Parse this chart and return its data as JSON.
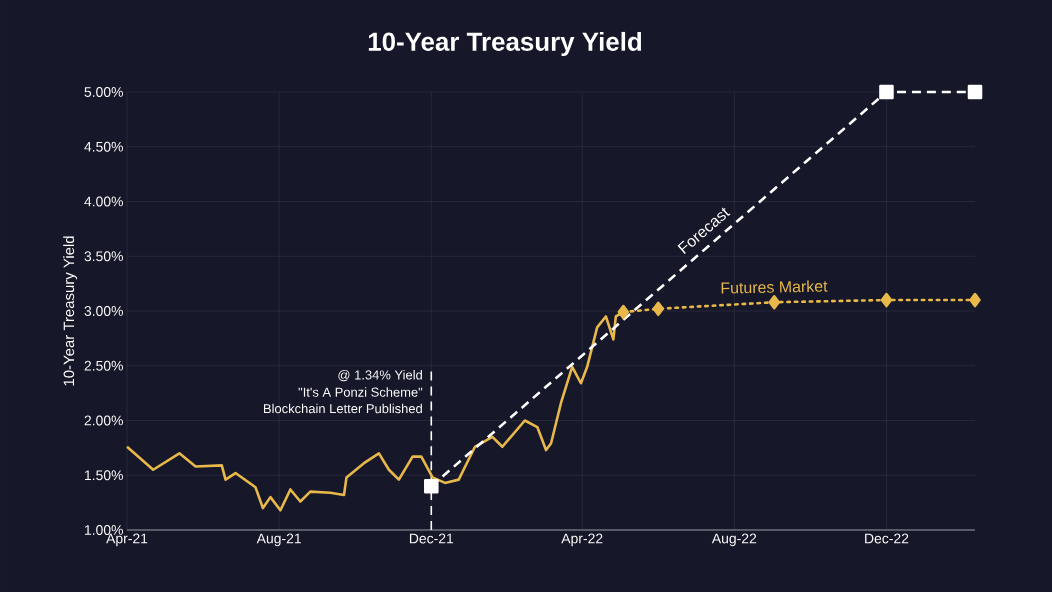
{
  "chart_data": {
    "type": "line",
    "title": "10-Year Treasury Yield",
    "ylabel": "10-Year Treasury Yield",
    "xlim": [
      "2021-04-01",
      "2023-02-10"
    ],
    "ylim": [
      1,
      5
    ],
    "xticks": [
      {
        "value": "2021-04-01",
        "label": "Apr-21"
      },
      {
        "value": "2021-08-01",
        "label": "Aug-21"
      },
      {
        "value": "2021-12-01",
        "label": "Dec-21"
      },
      {
        "value": "2022-04-01",
        "label": "Apr-22"
      },
      {
        "value": "2022-08-01",
        "label": "Aug-22"
      },
      {
        "value": "2022-12-01",
        "label": "Dec-22"
      }
    ],
    "yticks": [
      {
        "value": 1,
        "label": "1.00%"
      },
      {
        "value": 1.5,
        "label": "1.50%"
      },
      {
        "value": 2,
        "label": "2.00%"
      },
      {
        "value": 2.5,
        "label": "2.50%"
      },
      {
        "value": 3,
        "label": "3.00%"
      },
      {
        "value": 3.5,
        "label": "3.50%"
      },
      {
        "value": 4,
        "label": "4.00%"
      },
      {
        "value": 4.5,
        "label": "4.50%"
      },
      {
        "value": 5,
        "label": "5.00%"
      }
    ],
    "grid": true,
    "legend": false,
    "series": [
      {
        "color": "#e8b84a",
        "line_style": "solid",
        "marker": "none",
        "x": [
          "2021-04-01",
          "2021-04-22",
          "2021-05-13",
          "2021-05-26",
          "2021-06-16",
          "2021-06-19",
          "2021-06-27",
          "2021-07-13",
          "2021-07-19",
          "2021-07-25",
          "2021-08-02",
          "2021-08-10",
          "2021-08-18",
          "2021-08-26",
          "2021-09-11",
          "2021-09-22",
          "2021-09-24",
          "2021-10-08",
          "2021-10-20",
          "2021-10-28",
          "2021-11-05",
          "2021-11-16",
          "2021-11-23",
          "2021-12-02",
          "2021-12-12",
          "2021-12-23",
          "2022-01-05",
          "2022-01-19",
          "2022-01-27",
          "2022-02-14",
          "2022-02-24",
          "2022-03-03",
          "2022-03-07",
          "2022-03-15",
          "2022-03-24",
          "2022-03-31",
          "2022-04-05",
          "2022-04-13",
          "2022-04-20",
          "2022-04-26",
          "2022-04-28",
          "2022-05-04"
        ],
        "values": [
          1.76,
          1.55,
          1.7,
          1.58,
          1.59,
          1.46,
          1.52,
          1.39,
          1.2,
          1.3,
          1.18,
          1.37,
          1.26,
          1.35,
          1.34,
          1.32,
          1.48,
          1.61,
          1.7,
          1.55,
          1.46,
          1.67,
          1.67,
          1.48,
          1.43,
          1.46,
          1.76,
          1.85,
          1.76,
          2.0,
          1.94,
          1.73,
          1.79,
          2.16,
          2.49,
          2.34,
          2.49,
          2.85,
          2.95,
          2.74,
          2.95,
          2.99
        ]
      },
      {
        "name": "Futures Market",
        "color": "#e8b84a",
        "line_style": "dotted",
        "marker": "diamond",
        "x": [
          "2022-05-04",
          "2022-06-01",
          "2022-09-02",
          "2022-12-01",
          "2023-02-10"
        ],
        "values": [
          2.99,
          3.02,
          3.08,
          3.1,
          3.1
        ]
      },
      {
        "name": "Forecast",
        "color": "#ffffff",
        "line_style": "dashed",
        "marker": "square",
        "x": [
          "2021-12-01",
          "2022-12-01",
          "2023-02-10"
        ],
        "values": [
          1.4,
          5.0,
          5.0
        ]
      }
    ],
    "ref_lines": [
      {
        "axis": "x",
        "value": "2021-12-01",
        "color": "#ffffff",
        "line_style": "dashed"
      }
    ],
    "annotations": [
      {
        "text": "@ 1.34% Yield",
        "x": "2021-12-01",
        "y": 2.41
      },
      {
        "text": "\"It's A Ponzi Scheme\"",
        "x": "2021-12-01",
        "y": 2.26
      },
      {
        "text": "Blockchain Letter Published",
        "x": "2021-12-01",
        "y": 2.11
      }
    ]
  }
}
